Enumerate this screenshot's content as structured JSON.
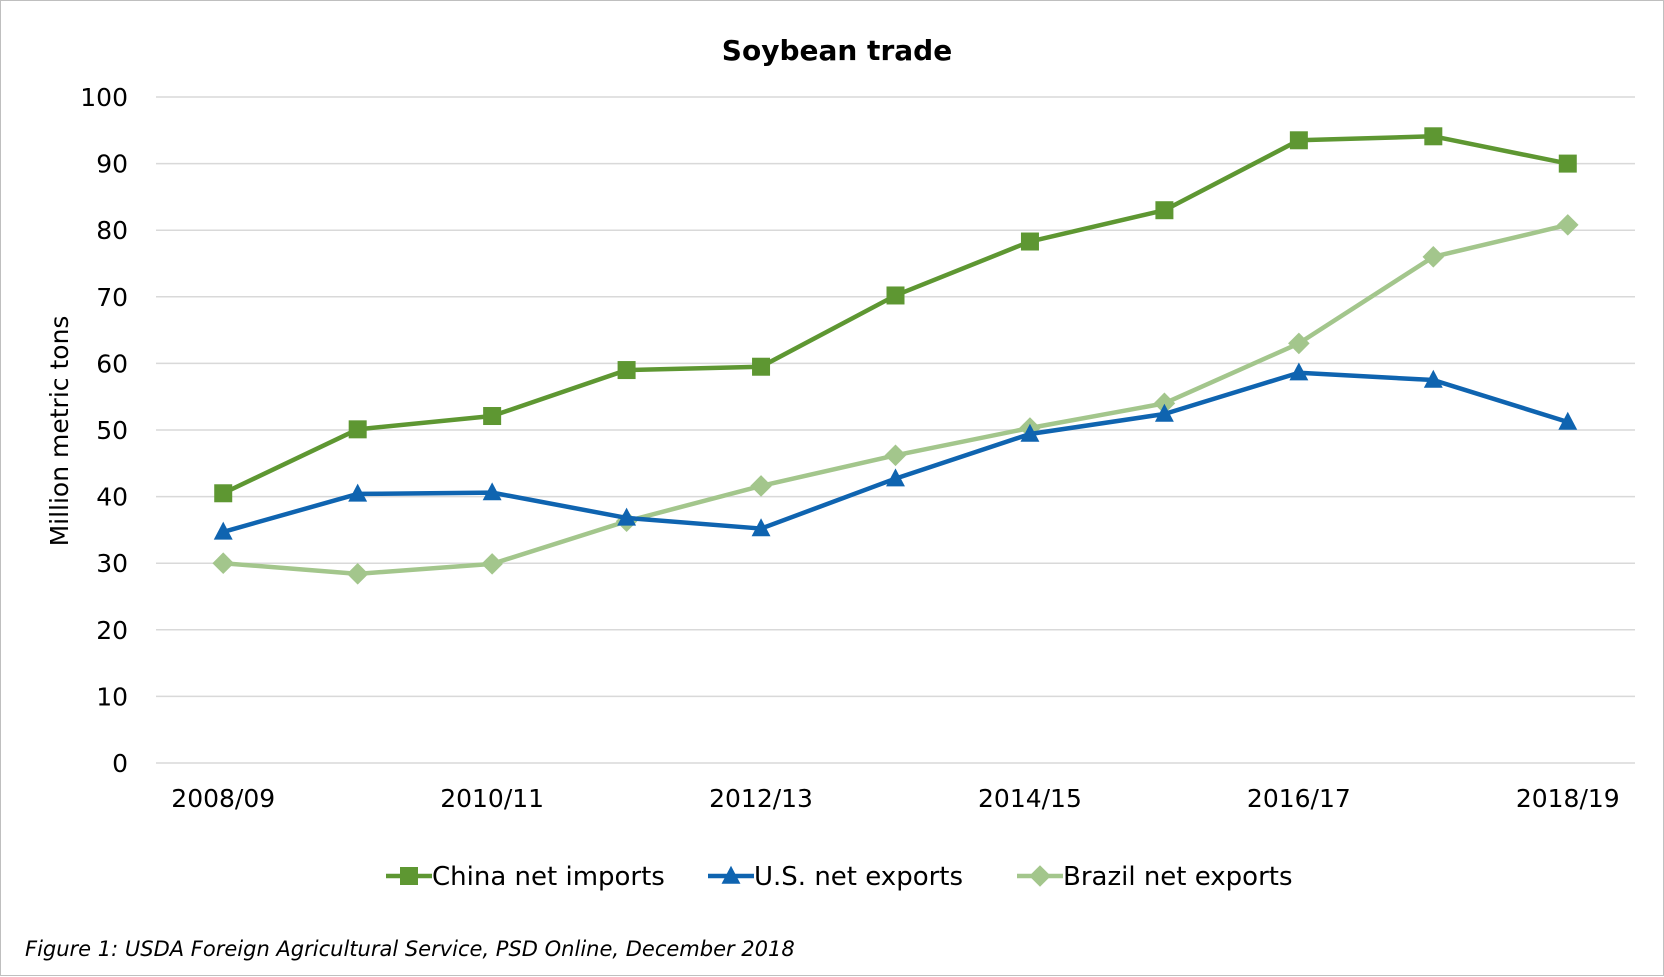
{
  "chart_data": {
    "type": "line",
    "title": "Soybean trade",
    "xlabel": "",
    "ylabel": "Million metric tons",
    "ylim": [
      0,
      100
    ],
    "y_ticks": [
      0,
      10,
      20,
      30,
      40,
      50,
      60,
      70,
      80,
      90,
      100
    ],
    "categories": [
      "2008/09",
      "2009/10",
      "2010/11",
      "2011/12",
      "2012/13",
      "2013/14",
      "2014/15",
      "2015/16",
      "2016/17",
      "2017/18",
      "2018/19"
    ],
    "x_tick_labels": [
      "2008/09",
      "",
      "2010/11",
      "",
      "2012/13",
      "",
      "2014/15",
      "",
      "2016/17",
      "",
      "2018/19"
    ],
    "grid": "horizontal",
    "legend_position": "bottom",
    "series": [
      {
        "name": "China net imports",
        "color": "#5e9732",
        "marker": "square",
        "values": [
          40.5,
          50.1,
          52.1,
          59.0,
          59.5,
          70.2,
          78.3,
          83.0,
          93.5,
          94.1,
          90.0
        ]
      },
      {
        "name": "U.S. net exports",
        "color": "#0f64b0",
        "marker": "triangle",
        "values": [
          34.7,
          40.4,
          40.6,
          36.8,
          35.2,
          42.7,
          49.4,
          52.4,
          58.6,
          57.5,
          51.2
        ]
      },
      {
        "name": "Brazil net exports",
        "color": "#a3c68c",
        "marker": "diamond",
        "values": [
          30.0,
          28.4,
          29.9,
          36.3,
          41.6,
          46.2,
          50.3,
          54.0,
          63.0,
          76.0,
          80.8
        ]
      }
    ]
  },
  "caption": "Figure 1: USDA Foreign Agricultural Service, PSD Online, December 2018"
}
